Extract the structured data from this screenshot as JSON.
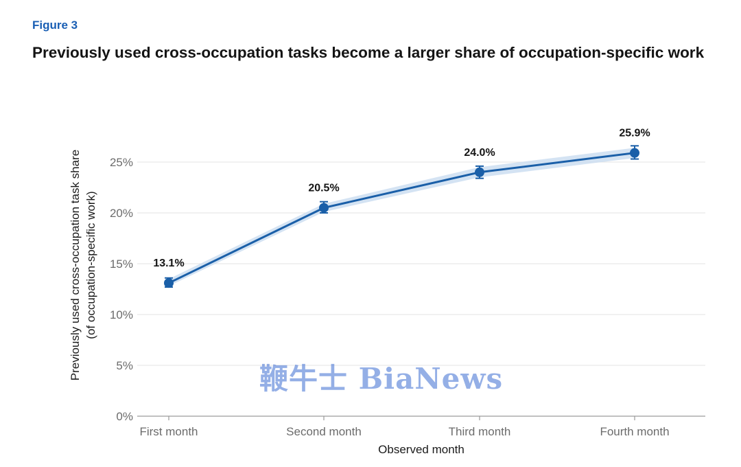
{
  "figure_label": "Figure 3",
  "title": "Previously used cross-occupation tasks become a larger share of occupation-specific work",
  "watermark": "鞭牛士 BiaNews",
  "colors": {
    "line": "#1a5fa8",
    "band": "#c9dcf0",
    "grid": "#e3e3e3",
    "axis": "#9a9a9a"
  },
  "chart_data": {
    "type": "line",
    "categories": [
      "First month",
      "Second month",
      "Third month",
      "Fourth month"
    ],
    "values": [
      13.1,
      20.5,
      24.0,
      25.9
    ],
    "error_low": [
      12.7,
      20.0,
      23.4,
      25.3
    ],
    "error_high": [
      13.6,
      21.1,
      24.6,
      26.6
    ],
    "band_low": [
      12.8,
      20.1,
      23.5,
      25.4
    ],
    "band_high": [
      13.5,
      20.9,
      24.5,
      26.4
    ],
    "data_labels": [
      "13.1%",
      "20.5%",
      "24.0%",
      "25.9%"
    ],
    "yticks": [
      0,
      5,
      10,
      15,
      20,
      25
    ],
    "ytick_labels": [
      "0%",
      "5%",
      "10%",
      "15%",
      "20%",
      "25%"
    ],
    "ylim": [
      0,
      28
    ],
    "xlabel": "Observed month",
    "ylabel_line1": "Previously used cross-occupation task share",
    "ylabel_line2": "(of occupation-specific work)",
    "grid": true
  }
}
